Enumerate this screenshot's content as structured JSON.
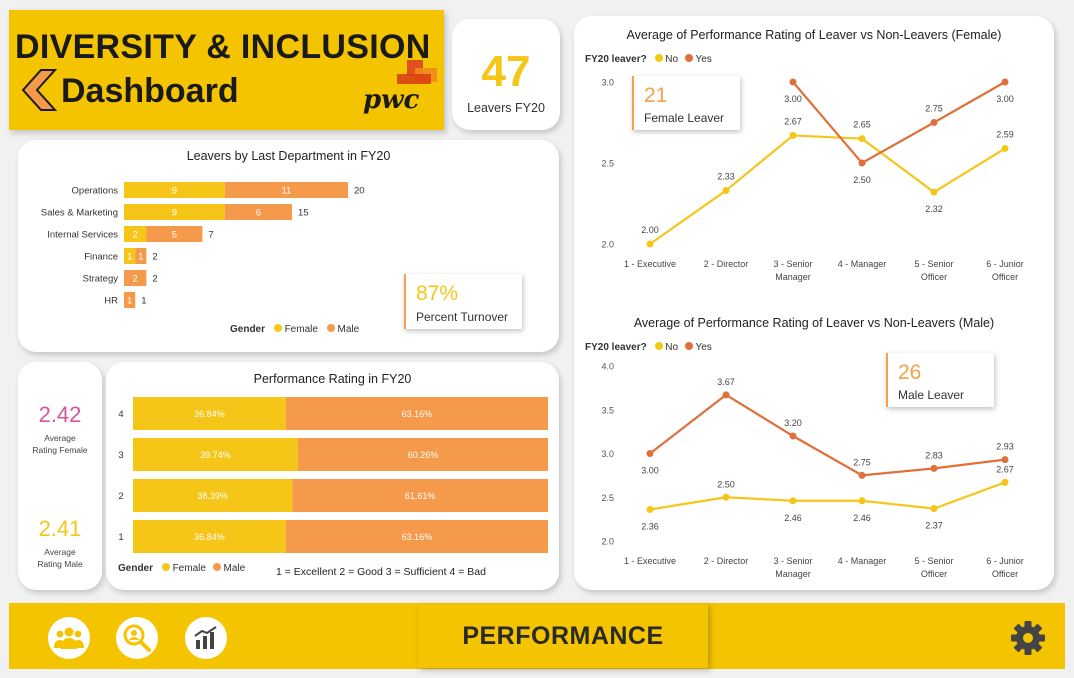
{
  "header": {
    "title_line1": "DIVERSITY & INCLUSION",
    "title_line2": "Dashboard",
    "logo_text": "pwc",
    "colors": {
      "accent": "#f5c400",
      "female": "#f5c518",
      "male": "#f5994a",
      "leaver_yes": "#e0703a"
    }
  },
  "kpis": {
    "leavers": {
      "value": "47",
      "label": "Leavers FY20"
    },
    "rating_female": {
      "value": "2.42",
      "label_line1": "Average",
      "label_line2": "Rating Female"
    },
    "rating_male": {
      "value": "2.41",
      "label_line1": "Average",
      "label_line2": "Rating Male"
    }
  },
  "callouts": {
    "turnover": {
      "value": "87%",
      "label": "Percent Turnover"
    },
    "female_leaver": {
      "value": "21",
      "label": "Female Leaver"
    },
    "male_leaver": {
      "value": "26",
      "label": "Male Leaver"
    }
  },
  "legends": {
    "gender_title": "Gender",
    "female": "Female",
    "male": "Male",
    "leaver_title": "FY20 leaver?",
    "no": "No",
    "yes": "Yes"
  },
  "rating_key": "1 = Excellent 2 = Good 3 = Sufficient 4 = Bad",
  "footer": {
    "tab_label": "PERFORMANCE",
    "icons": [
      "people-icon",
      "search-person-icon",
      "chart-icon",
      "gear-icon"
    ]
  },
  "chart_data": [
    {
      "type": "bar",
      "title": "Leavers by Last Department in FY20",
      "orientation": "horizontal",
      "stacked": true,
      "categories": [
        "Operations",
        "Sales & Marketing",
        "Internal Services",
        "Finance",
        "Strategy",
        "HR"
      ],
      "series": [
        {
          "name": "Female",
          "values": [
            9,
            9,
            2,
            1,
            0,
            0
          ]
        },
        {
          "name": "Male",
          "values": [
            11,
            6,
            5,
            1,
            2,
            1
          ]
        }
      ],
      "totals": [
        20,
        15,
        7,
        2,
        2,
        1
      ],
      "legend": "bottom"
    },
    {
      "type": "bar",
      "title": "Performance Rating in FY20",
      "orientation": "horizontal",
      "stacked": true,
      "percent": true,
      "categories": [
        "4",
        "3",
        "2",
        "1"
      ],
      "series": [
        {
          "name": "Female",
          "values": [
            36.84,
            39.74,
            38.39,
            36.84
          ],
          "labels": [
            "36.84%",
            "39.74%",
            "38.39%",
            "36.84%"
          ]
        },
        {
          "name": "Male",
          "values": [
            63.16,
            60.26,
            61.61,
            63.16
          ],
          "labels": [
            "63.16%",
            "60.26%",
            "61.61%",
            "63.16%"
          ]
        }
      ],
      "legend": "bottom"
    },
    {
      "type": "line",
      "title": "Average of Performance Rating of Leaver vs Non-Leavers (Female)",
      "categories": [
        "1 - Executive",
        "2 - Director",
        "3 - Senior Manager",
        "4 - Manager",
        "5 - Senior Officer",
        "6 - Junior Officer"
      ],
      "series": [
        {
          "name": "No",
          "values": [
            2.0,
            2.33,
            2.67,
            2.65,
            2.32,
            2.59
          ],
          "labels": [
            "2.00",
            "2.33",
            "2.67",
            "2.65",
            "2.32",
            "2.59"
          ]
        },
        {
          "name": "Yes",
          "values": [
            null,
            null,
            3.0,
            2.5,
            2.75,
            3.0
          ],
          "labels": [
            "",
            "",
            "3.00",
            "2.50",
            "2.75",
            "3.00"
          ]
        }
      ],
      "yticks": [
        "2.0",
        "2.5",
        "3.0"
      ],
      "ylim": [
        2.0,
        3.0
      ],
      "legend": "top-left"
    },
    {
      "type": "line",
      "title": "Average of Performance Rating of Leaver vs Non-Leavers (Male)",
      "categories": [
        "1 - Executive",
        "2 - Director",
        "3 - Senior Manager",
        "4 - Manager",
        "5 - Senior Officer",
        "6 - Junior Officer"
      ],
      "series": [
        {
          "name": "No",
          "values": [
            2.36,
            2.5,
            2.46,
            2.46,
            2.37,
            2.67
          ],
          "labels": [
            "2.36",
            "2.50",
            "2.46",
            "2.46",
            "2.37",
            "2.67"
          ]
        },
        {
          "name": "Yes",
          "values": [
            3.0,
            3.67,
            3.2,
            2.75,
            2.83,
            2.93
          ],
          "labels": [
            "3.00",
            "3.67",
            "3.20",
            "2.75",
            "2.83",
            "2.93"
          ]
        }
      ],
      "yticks": [
        "2.0",
        "2.5",
        "3.0",
        "3.5",
        "4.0"
      ],
      "ylim": [
        2.0,
        4.0
      ],
      "legend": "top-left"
    }
  ]
}
